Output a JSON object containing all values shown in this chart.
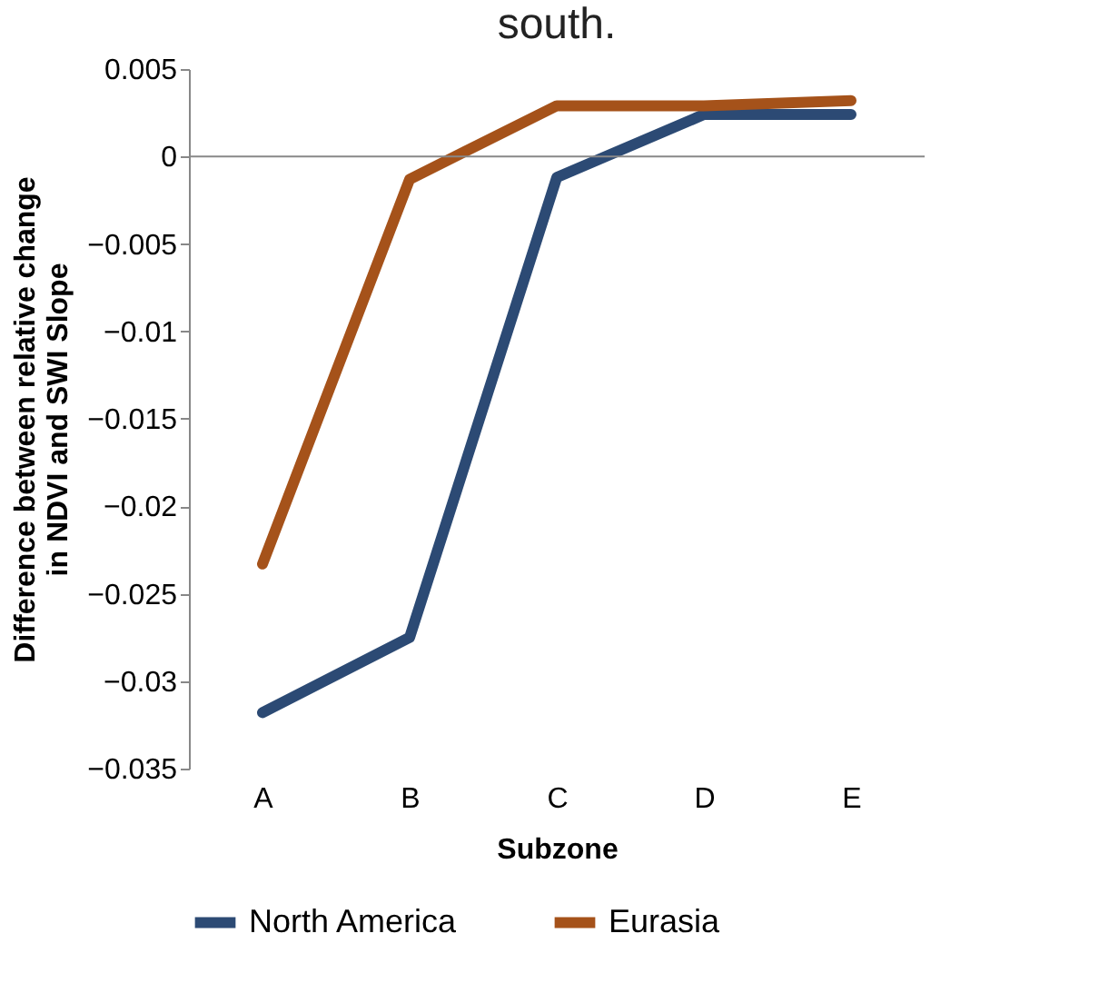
{
  "chart_data": {
    "type": "line",
    "title": "south.",
    "xlabel": "Subzone",
    "ylabel": "Difference between relative change\nin NDVI and SWI Slope",
    "categories": [
      "A",
      "B",
      "C",
      "D",
      "E"
    ],
    "series": [
      {
        "name": "North America",
        "color": "#2c4a74",
        "values": [
          -0.0318,
          -0.0275,
          -0.0012,
          0.0024,
          0.0024
        ]
      },
      {
        "name": "Eurasia",
        "color": "#a5521a",
        "values": [
          -0.0233,
          -0.0013,
          0.0029,
          0.0029,
          0.0032
        ]
      }
    ],
    "ylim": [
      -0.035,
      0.005
    ],
    "yticks": [
      -0.035,
      -0.03,
      -0.025,
      -0.02,
      -0.015,
      -0.01,
      -0.005,
      0,
      0.005
    ],
    "ref_lines": [
      {
        "axis": "y",
        "value": 0
      }
    ],
    "grid": false,
    "legend": "bottom",
    "marker": "none",
    "line_style": "solid"
  }
}
